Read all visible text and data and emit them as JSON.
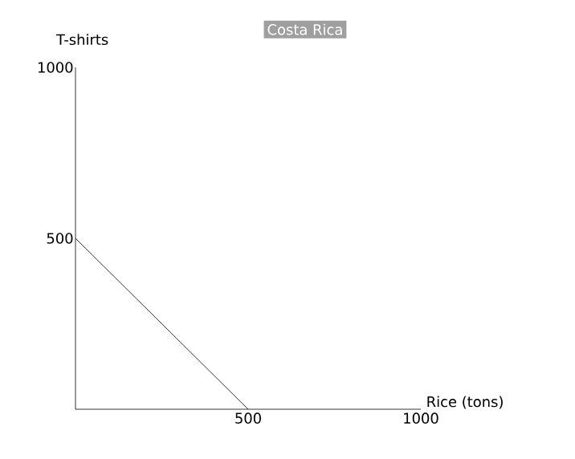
{
  "chart_data": {
    "type": "line",
    "title": "Costa Rica",
    "xlabel": "Rice (tons)",
    "ylabel": "T-shirts",
    "xlim": [
      0,
      1000
    ],
    "ylim": [
      0,
      1000
    ],
    "xticks": [
      500,
      1000
    ],
    "yticks": [
      500,
      1000
    ],
    "series": [
      {
        "color": "#000000",
        "x": [
          0,
          500
        ],
        "values": [
          500,
          0
        ]
      }
    ]
  }
}
